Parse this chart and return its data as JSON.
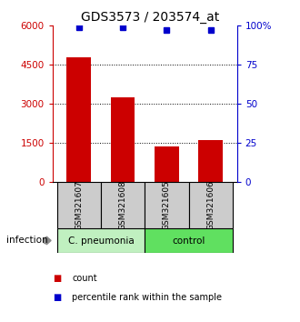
{
  "title": "GDS3573 / 203574_at",
  "samples": [
    "GSM321607",
    "GSM321608",
    "GSM321605",
    "GSM321606"
  ],
  "counts": [
    4800,
    3250,
    1350,
    1600
  ],
  "percentile_ranks": [
    99,
    99,
    97,
    97
  ],
  "groups": [
    {
      "label": "C. pneumonia",
      "color": "#c0f0c0",
      "samples": [
        0,
        1
      ]
    },
    {
      "label": "control",
      "color": "#60e060",
      "samples": [
        2,
        3
      ]
    }
  ],
  "group_label": "infection",
  "bar_color": "#cc0000",
  "dot_color": "#0000cc",
  "left_axis_color": "#cc0000",
  "right_axis_color": "#0000cc",
  "ylim_left": [
    0,
    6000
  ],
  "ylim_right": [
    0,
    100
  ],
  "left_yticks": [
    0,
    1500,
    3000,
    4500,
    6000
  ],
  "right_yticks": [
    0,
    25,
    50,
    75,
    100
  ],
  "right_yticklabels": [
    "0",
    "25",
    "50",
    "75",
    "100%"
  ],
  "dotted_lines": [
    1500,
    3000,
    4500
  ],
  "legend_items": [
    {
      "color": "#cc0000",
      "label": "count"
    },
    {
      "color": "#0000cc",
      "label": "percentile rank within the sample"
    }
  ],
  "bar_width": 0.55,
  "title_fontsize": 10,
  "tick_fontsize": 7.5,
  "sample_label_box_color": "#cccccc",
  "fig_bg": "#ffffff"
}
